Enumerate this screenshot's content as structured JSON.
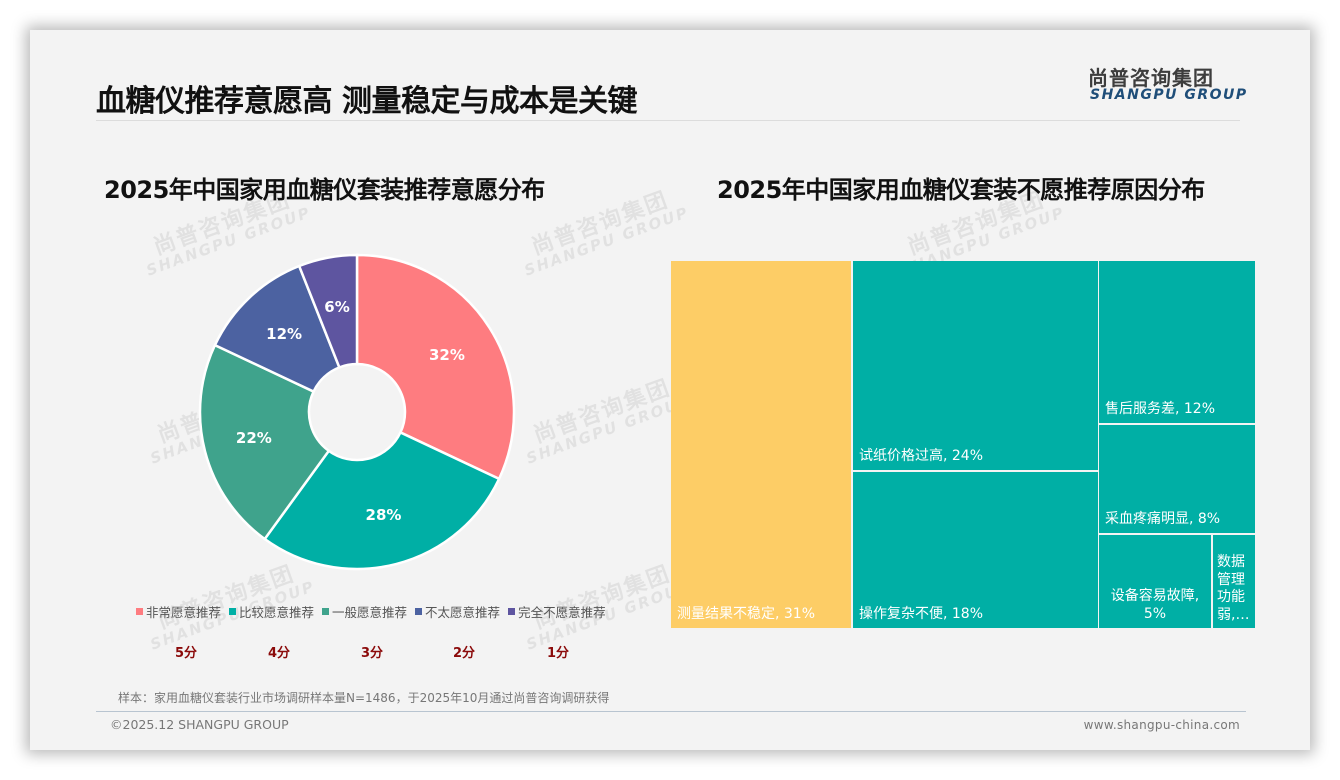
{
  "header": {
    "title": "血糖仪推荐意愿高 测量稳定与成本是关键",
    "logo_cn": "尚普咨询集团",
    "logo_en": "SHANGPU GROUP"
  },
  "watermark": {
    "cn": "尚普咨询集团",
    "en": "SHANGPU GROUP"
  },
  "left_panel": {
    "title": "2025年中国家用血糖仪套装推荐意愿分布",
    "scores": [
      "5分",
      "4分",
      "3分",
      "2分",
      "1分"
    ]
  },
  "right_panel": {
    "title": "2025年中国家用血糖仪套装不愿推荐原因分布"
  },
  "chart_data": [
    {
      "type": "pie",
      "subtype": "donut",
      "title": "2025年中国家用血糖仪套装推荐意愿分布",
      "categories": [
        "非常愿意推荐",
        "比较愿意推荐",
        "一般愿意推荐",
        "不太愿意推荐",
        "完全不愿意推荐"
      ],
      "values": [
        32,
        28,
        22,
        12,
        6
      ],
      "labels": [
        "32%",
        "28%",
        "22%",
        "12%",
        "6%"
      ],
      "scores": [
        "5分",
        "4分",
        "3分",
        "2分",
        "1分"
      ],
      "colors": [
        "#fe7c80",
        "#00afa5",
        "#3fa38c",
        "#4c62a1",
        "#5e55a0"
      ],
      "legend_position": "bottom",
      "start_angle": "12 o'clock, clockwise"
    },
    {
      "type": "treemap",
      "title": "2025年中国家用血糖仪套装不愿推荐原因分布",
      "categories": [
        "测量结果不稳定",
        "试纸价格过高",
        "操作复杂不便",
        "售后服务差",
        "采血疼痛明显",
        "设备容易故障",
        "数据管理功能弱"
      ],
      "values": [
        31,
        24,
        18,
        12,
        8,
        5,
        2
      ],
      "labels": [
        "测量结果不稳定, 31%",
        "试纸价格过高, 24%",
        "操作复杂不便, 18%",
        "售后服务差, 12%",
        "采血疼痛明显, 8%",
        "设备容易故障, 5%",
        "数据管理功能弱,…"
      ],
      "colors": [
        "#fdcd66",
        "#00afa5",
        "#00afa5",
        "#00afa5",
        "#00afa5",
        "#00afa5",
        "#00afa5"
      ]
    }
  ],
  "footer": {
    "sample_note": "样本：家用血糖仪套装行业市场调研样本量N=1486，于2025年10月通过尚普咨询调研获得",
    "copyright": "©2025.12 SHANGPU GROUP",
    "website": "www.shangpu-china.com"
  }
}
